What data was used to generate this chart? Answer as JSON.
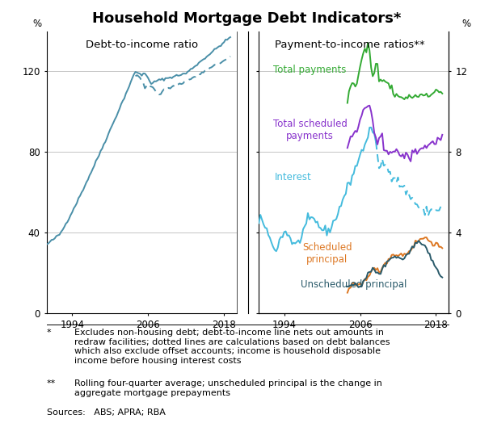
{
  "title": "Household Mortgage Debt Indicators*",
  "left_panel_title": "Debt-to-income ratio",
  "right_panel_title": "Payment-to-income ratios**",
  "left_ylabel": "%",
  "right_ylabel": "%",
  "left_ylim": [
    0,
    140
  ],
  "right_ylim": [
    0,
    14
  ],
  "left_yticks": [
    0,
    40,
    80,
    120
  ],
  "right_yticks": [
    0,
    4,
    8,
    12
  ],
  "xticks": [
    1994,
    2006,
    2018
  ],
  "footnote1_star": "*",
  "footnote1_text": "Excludes non-housing debt; debt-to-income line nets out amounts in\nredraw facilities; dotted lines are calculations based on debt balances\nwhich also exclude offset accounts; income is household disposable\nincome before housing interest costs",
  "footnote2_star": "**",
  "footnote2_text": "Rolling four-quarter average; unscheduled principal is the change in\naggregate mortgage prepayments",
  "sources": "Sources:   ABS; APRA; RBA",
  "dti_color": "#4a8fa8",
  "total_payments_color": "#33aa33",
  "total_scheduled_color": "#8833cc",
  "interest_color": "#44bbdd",
  "scheduled_principal_color": "#dd7722",
  "unscheduled_principal_color": "#2a5a6a",
  "grid_color": "#bbbbbb"
}
